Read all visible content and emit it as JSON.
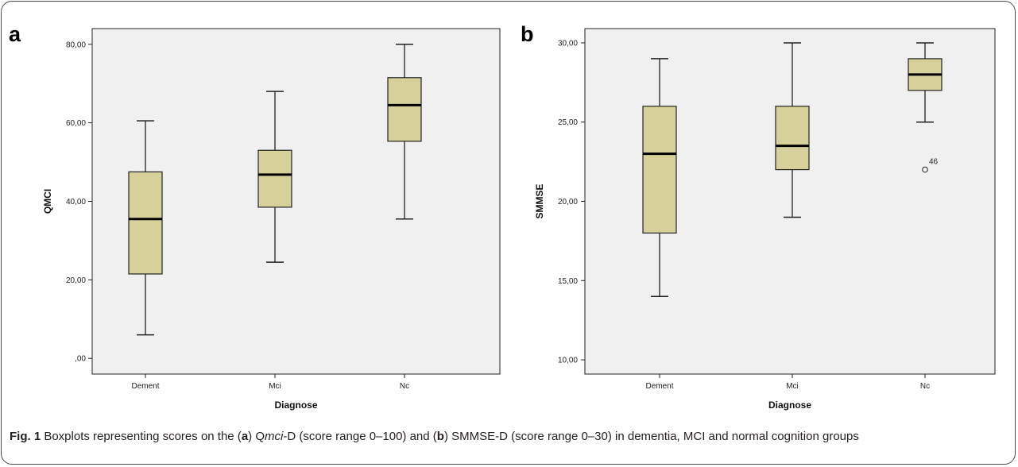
{
  "chart_data": [
    {
      "type": "box",
      "panel_label": "a",
      "xlabel": "Diagnose",
      "ylabel": "QMCI",
      "categories": [
        "Dement",
        "Mci",
        "Nc"
      ],
      "ylim": [
        -4,
        84
      ],
      "yticks": [
        0,
        20,
        40,
        60,
        80
      ],
      "ytick_labels": [
        ",00",
        "20,00",
        "40,00",
        "60,00",
        "80,00"
      ],
      "grid": false,
      "boxes": [
        {
          "category": "Dement",
          "min": 6,
          "q1": 21.5,
          "median": 35.5,
          "q3": 47.5,
          "max": 60.5
        },
        {
          "category": "Mci",
          "min": 24.5,
          "q1": 38.5,
          "median": 46.8,
          "q3": 53,
          "max": 68
        },
        {
          "category": "Nc",
          "min": 35.5,
          "q1": 55.3,
          "median": 64.5,
          "q3": 71.5,
          "max": 80
        }
      ],
      "outliers": []
    },
    {
      "type": "box",
      "panel_label": "b",
      "xlabel": "Diagnose",
      "ylabel": "SMMSE",
      "categories": [
        "Dement",
        "Mci",
        "Nc"
      ],
      "ylim": [
        9.1,
        30.9
      ],
      "yticks": [
        10,
        15,
        20,
        25,
        30
      ],
      "ytick_labels": [
        "10,00",
        "15,00",
        "20,00",
        "25,00",
        "30,00"
      ],
      "grid": false,
      "boxes": [
        {
          "category": "Dement",
          "min": 14,
          "q1": 18,
          "median": 23,
          "q3": 26,
          "max": 29
        },
        {
          "category": "Mci",
          "min": 19,
          "q1": 22,
          "median": 23.5,
          "q3": 26,
          "max": 30
        },
        {
          "category": "Nc",
          "min": 25,
          "q1": 27,
          "median": 28,
          "q3": 29,
          "max": 30
        }
      ],
      "outliers": [
        {
          "category": "Nc",
          "value": 22,
          "label": "46"
        }
      ]
    }
  ],
  "colors": {
    "plot_background": "#f0f0f0",
    "box_fill": "#d6d09a",
    "box_stroke": "#222222",
    "caption_text": "#231f20",
    "frame": "#4a4a4a"
  },
  "caption": {
    "fig_label": "Fig. 1",
    "t1": " Boxplots representing scores on the (",
    "a": "a",
    "t2": ") Q",
    "mci": "mci",
    "t3": "-D (score range 0–100) and (",
    "b": "b",
    "t4": ") SMMSE-D (score range 0–30) in dementia, MCI and normal cognition groups"
  }
}
